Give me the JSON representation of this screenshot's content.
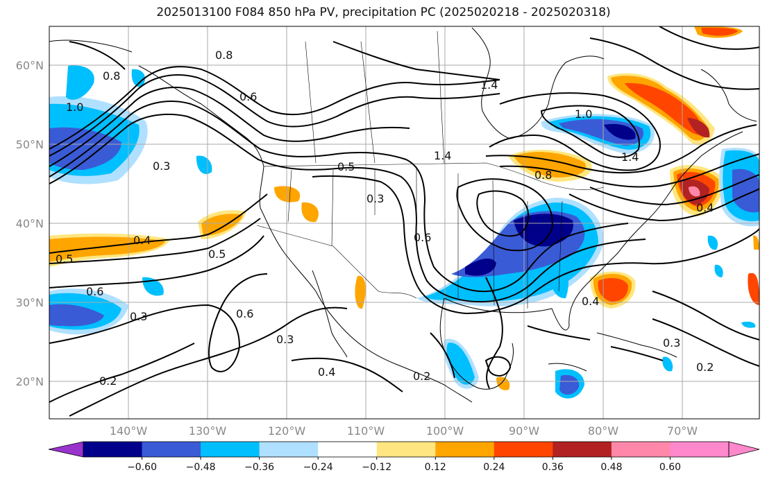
{
  "title": "2025013100 F084 850 hPa PV, precipitation PC (2025020218 - 2025020318)",
  "lat_labels": [
    "60°N",
    "50°N",
    "40°N",
    "30°N",
    "20°N"
  ],
  "lon_labels": [
    "140°W",
    "130°W",
    "120°W",
    "110°W",
    "100°W",
    "90°W",
    "80°W",
    "70°W"
  ],
  "contour_labels": [
    "1.4",
    "1.4",
    "1.0",
    "0.8",
    "0.6",
    "0.5",
    "0.3",
    "0.5",
    "0.4",
    "0.5",
    "0.6",
    "0.3",
    "0.6",
    "0.3",
    "0.4",
    "0.2",
    "0.3",
    "0.2",
    "0.3",
    "0.2",
    "1.0",
    "0.8",
    "0.4",
    "1.4",
    "0.4",
    "0.8",
    "0.6"
  ],
  "colorbar": {
    "ticks": [
      "−0.60",
      "−0.48",
      "−0.36",
      "−0.24",
      "−0.12",
      "0.12",
      "0.24",
      "0.36",
      "0.48",
      "0.60"
    ],
    "colors": [
      "#9933cc",
      "#00008b",
      "#3a5bd6",
      "#00bfff",
      "#b0e0ff",
      "#ffffff",
      "#ffe680",
      "#ffa500",
      "#ff4500",
      "#b22222",
      "#ff88aa",
      "#ff88cc"
    ]
  }
}
